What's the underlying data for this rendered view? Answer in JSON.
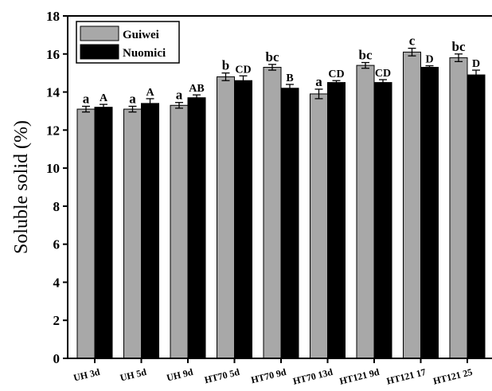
{
  "chart_data": {
    "type": "bar",
    "title": "",
    "xlabel": "",
    "ylabel": "Soluble solid (%)",
    "ylim": [
      0,
      18
    ],
    "yticks": [
      0,
      2,
      4,
      6,
      8,
      10,
      12,
      14,
      16,
      18
    ],
    "grid": false,
    "legend_position": "top-left",
    "categories": [
      "UH 3d",
      "UH 5d",
      "UH 9d",
      "HT70 5d",
      "HT70 9d",
      "HT70 13d",
      "HT121 9d",
      "HT121 17",
      "HT121 25"
    ],
    "series": [
      {
        "name": "Guiwei",
        "color": "#a8a8a8",
        "values": [
          13.1,
          13.1,
          13.3,
          14.8,
          15.3,
          13.9,
          15.4,
          16.1,
          15.8
        ],
        "errors": [
          0.15,
          0.15,
          0.15,
          0.2,
          0.15,
          0.25,
          0.15,
          0.2,
          0.2
        ],
        "letters": [
          "a",
          "a",
          "a",
          "b",
          "bc",
          "a",
          "bc",
          "c",
          "bc"
        ]
      },
      {
        "name": "Nuomici",
        "color": "#000000",
        "values": [
          13.2,
          13.4,
          13.7,
          14.6,
          14.2,
          14.5,
          14.5,
          15.3,
          14.9
        ],
        "errors": [
          0.15,
          0.25,
          0.15,
          0.25,
          0.2,
          0.1,
          0.15,
          0.08,
          0.25
        ],
        "letters": [
          "A",
          "A",
          "AB",
          "CD",
          "B",
          "CD",
          "CD",
          "D",
          "D"
        ]
      }
    ]
  }
}
